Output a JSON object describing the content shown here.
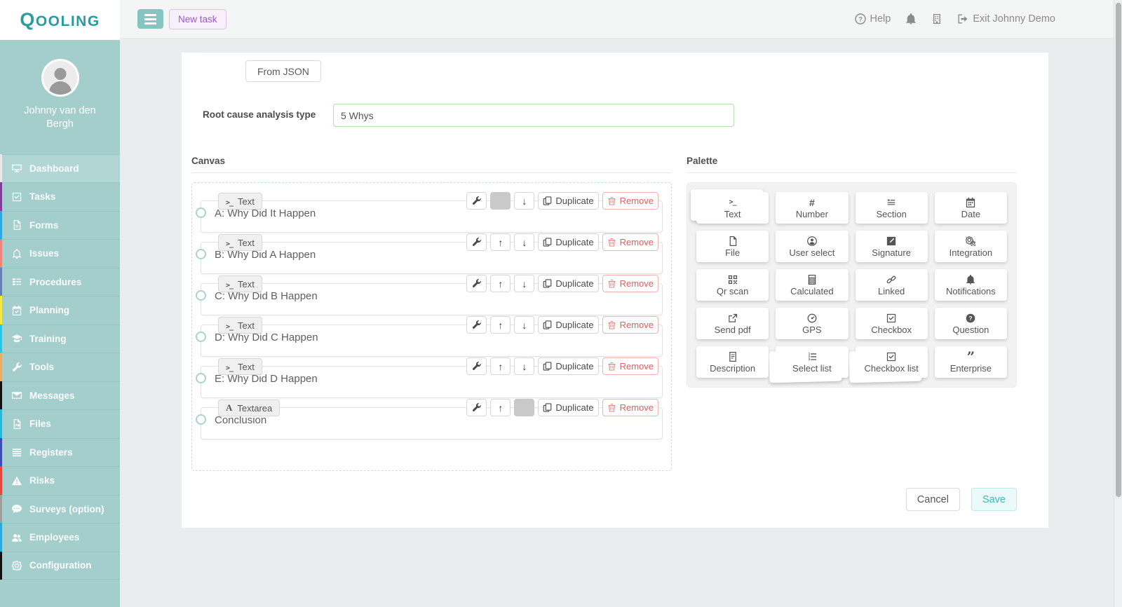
{
  "app": {
    "logo": "QOOLING"
  },
  "topbar": {
    "new_task_label": "New task",
    "help_label": "Help",
    "exit_label": "Exit Johnny Demo"
  },
  "sidebar": {
    "user_name": "Johnny van den Bergh",
    "items": [
      {
        "label": "Dashboard",
        "icon": "dashboard-icon",
        "strip_color": "#e8e8e8",
        "active": true
      },
      {
        "label": "Tasks",
        "icon": "tasks-icon",
        "strip_color": "#7f3f98",
        "active": false
      },
      {
        "label": "Forms",
        "icon": "forms-icon",
        "strip_color": "#29abe2",
        "active": false
      },
      {
        "label": "Issues",
        "icon": "issues-icon",
        "strip_color": "#f4837d",
        "active": false
      },
      {
        "label": "Procedures",
        "icon": "procedures-icon",
        "strip_color": "#667db8",
        "active": false
      },
      {
        "label": "Planning",
        "icon": "planning-icon",
        "strip_color": "#f5e93f",
        "active": false
      },
      {
        "label": "Training",
        "icon": "training-icon",
        "strip_color": "#29c5e6",
        "active": false
      },
      {
        "label": "Tools",
        "icon": "tools-icon",
        "strip_color": "#ecab68",
        "active": false
      },
      {
        "label": "Messages",
        "icon": "messages-icon",
        "strip_color": "#121212",
        "active": false
      },
      {
        "label": "Files",
        "icon": "files-icon",
        "strip_color": "#29b8d8",
        "active": false
      },
      {
        "label": "Registers",
        "icon": "registers-icon",
        "strip_color": "#3b4db0",
        "active": false
      },
      {
        "label": "Risks",
        "icon": "risks-icon",
        "strip_color": "#e8453c",
        "active": false
      },
      {
        "label": "Surveys (option)",
        "icon": "surveys-icon",
        "strip_color": "#9e9e9e",
        "active": false
      },
      {
        "label": "Employees",
        "icon": "employees-icon",
        "strip_color": "#29aae1",
        "active": false
      },
      {
        "label": "Configuration",
        "icon": "configuration-icon",
        "strip_color": "#121212",
        "active": false
      }
    ]
  },
  "form": {
    "from_json_label": "From JSON",
    "type_label": "Root cause analysis type",
    "type_value": "5 Whys"
  },
  "canvas": {
    "title": "Canvas",
    "duplicate_label": "Duplicate",
    "remove_label": "Remove",
    "rows": [
      {
        "tag": "Text",
        "tag_icon": "terminal-icon",
        "label": "A: Why Did It Happen",
        "up_enabled": false,
        "down_enabled": true
      },
      {
        "tag": "Text",
        "tag_icon": "terminal-icon",
        "label": "B: Why Did A Happen",
        "up_enabled": true,
        "down_enabled": true
      },
      {
        "tag": "Text",
        "tag_icon": "terminal-icon",
        "label": "C: Why Did B Happen",
        "up_enabled": true,
        "down_enabled": true
      },
      {
        "tag": "Text",
        "tag_icon": "terminal-icon",
        "label": "D: Why Did C Happen",
        "up_enabled": true,
        "down_enabled": true
      },
      {
        "tag": "Text",
        "tag_icon": "terminal-icon",
        "label": "E: Why Did D Happen",
        "up_enabled": true,
        "down_enabled": true
      },
      {
        "tag": "Textarea",
        "tag_icon": "textarea-icon",
        "label": "Conclusion",
        "up_enabled": true,
        "down_enabled": false
      }
    ]
  },
  "palette": {
    "title": "Palette",
    "items": [
      {
        "label": "Text",
        "icon": "terminal-icon",
        "stacked": "up"
      },
      {
        "label": "Number",
        "icon": "hash-icon",
        "stacked": null
      },
      {
        "label": "Section",
        "icon": "section-icon",
        "stacked": null
      },
      {
        "label": "Date",
        "icon": "calendar-icon",
        "stacked": null
      },
      {
        "label": "File",
        "icon": "file-icon",
        "stacked": null
      },
      {
        "label": "User select",
        "icon": "user-circle-icon",
        "stacked": null
      },
      {
        "label": "Signature",
        "icon": "pen-square-icon",
        "stacked": null
      },
      {
        "label": "Integration",
        "icon": "gears-icon",
        "stacked": null
      },
      {
        "label": "Qr scan",
        "icon": "qr-icon",
        "stacked": null
      },
      {
        "label": "Calculated",
        "icon": "calculator-icon",
        "stacked": null
      },
      {
        "label": "Linked",
        "icon": "link-icon",
        "stacked": null
      },
      {
        "label": "Notifications",
        "icon": "bell-icon",
        "stacked": null
      },
      {
        "label": "Send pdf",
        "icon": "share-square-icon",
        "stacked": null
      },
      {
        "label": "GPS",
        "icon": "gauge-icon",
        "stacked": null
      },
      {
        "label": "Checkbox",
        "icon": "check-square-icon",
        "stacked": null
      },
      {
        "label": "Question",
        "icon": "question-circle-icon",
        "stacked": null
      },
      {
        "label": "Description",
        "icon": "doc-lines-icon",
        "stacked": null
      },
      {
        "label": "Select list",
        "icon": "list-ol-icon",
        "stacked": "down"
      },
      {
        "label": "Checkbox list",
        "icon": "check-square-icon",
        "stacked": "down"
      },
      {
        "label": "Enterprise",
        "icon": "quote-icon",
        "stacked": null
      }
    ]
  },
  "footer": {
    "cancel_label": "Cancel",
    "save_label": "Save"
  },
  "colors": {
    "sidebar_bg": "#a3cecb",
    "logo_teal": "#2b9c9e",
    "accent_teal": "#85c4c1",
    "new_task_purple": "#a257c2",
    "save_teal": "#3fb7b7",
    "remove_red": "#e05f5f",
    "input_green_border": "#b7dcb7"
  }
}
